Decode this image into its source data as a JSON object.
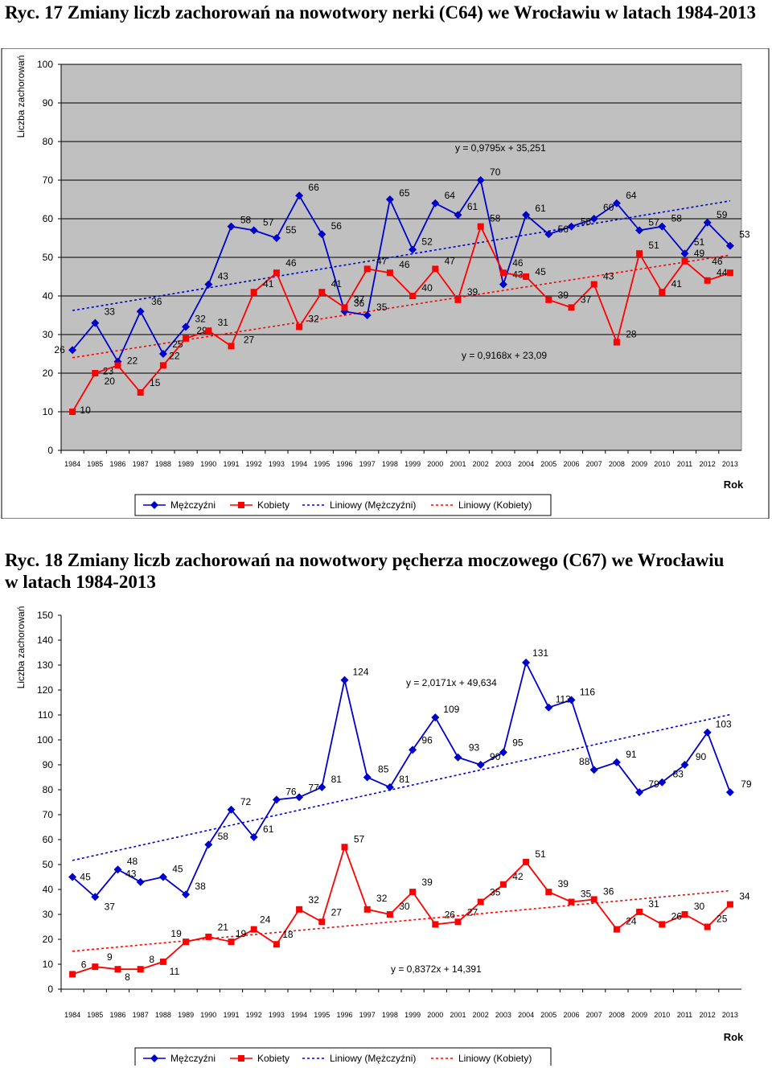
{
  "figures": [
    {
      "title": "Ryc. 17 Zmiany liczb zachorowań na nowotwory nerki (C64) we Wrocławiu w latach 1984-2013",
      "chart_data": {
        "type": "line",
        "x": [
          1984,
          1985,
          1986,
          1987,
          1988,
          1989,
          1990,
          1991,
          1992,
          1993,
          1994,
          1995,
          1996,
          1997,
          1998,
          1999,
          2000,
          2001,
          2002,
          2003,
          2004,
          2005,
          2006,
          2007,
          2008,
          2009,
          2010,
          2011,
          2012,
          2013
        ],
        "ylim": [
          0,
          100
        ],
        "yticks": [
          0,
          10,
          20,
          30,
          40,
          50,
          60,
          70,
          80,
          90,
          100
        ],
        "ylabel": "Liczba zachorowań",
        "xlabel": "Rok",
        "grid": "horizontal",
        "legend_position": "bottom",
        "series": [
          {
            "name": "Mężczyźni",
            "color": "#0000cc",
            "marker": "diamond",
            "values": [
              26,
              33,
              23,
              36,
              25,
              32,
              43,
              58,
              57,
              55,
              66,
              56,
              36,
              35,
              65,
              52,
              64,
              61,
              70,
              43,
              61,
              56,
              58,
              60,
              64,
              57,
              58,
              51,
              59,
              53
            ]
          },
          {
            "name": "Kobiety",
            "color": "#ff0000",
            "marker": "square",
            "values": [
              10,
              20,
              22,
              15,
              22,
              29,
              31,
              27,
              41,
              46,
              32,
              41,
              37,
              47,
              46,
              40,
              47,
              39,
              58,
              46,
              45,
              39,
              37,
              43,
              28,
              51,
              41,
              49,
              44,
              46
            ]
          }
        ],
        "trendlines": [
          {
            "name": "Liniowy (Mężczyźni)",
            "color": "#0000cc",
            "slope": 0.9795,
            "intercept": 35.251,
            "equation": "y = 0,9795x + 35,251"
          },
          {
            "name": "Liniowy (Kobiety)",
            "color": "#ff0000",
            "slope": 0.9168,
            "intercept": 23.09,
            "equation": "y = 0,9168x + 23,09"
          }
        ]
      }
    },
    {
      "title": "Ryc. 18 Zmiany liczb zachorowań na nowotwory pęcherza moczowego (C67) we Wrocławiu w latach 1984-2013",
      "chart_data": {
        "type": "line",
        "x": [
          1984,
          1985,
          1986,
          1987,
          1988,
          1989,
          1990,
          1991,
          1992,
          1993,
          1994,
          1995,
          1996,
          1997,
          1998,
          1999,
          2000,
          2001,
          2002,
          2003,
          2004,
          2005,
          2006,
          2007,
          2008,
          2009,
          2010,
          2011,
          2012,
          2013
        ],
        "ylim": [
          0,
          150
        ],
        "yticks": [
          0,
          10,
          20,
          30,
          40,
          50,
          60,
          70,
          80,
          90,
          100,
          110,
          120,
          130,
          140,
          150
        ],
        "ylabel": "Liczba zachorowań",
        "xlabel": "Rok",
        "grid": "none",
        "legend_position": "bottom",
        "series": [
          {
            "name": "Mężczyźni",
            "color": "#0000cc",
            "marker": "diamond",
            "values": [
              45,
              37,
              48,
              43,
              45,
              38,
              58,
              72,
              61,
              76,
              77,
              81,
              124,
              85,
              81,
              96,
              109,
              93,
              90,
              95,
              131,
              113,
              116,
              88,
              91,
              79,
              83,
              90,
              103,
              79
            ]
          },
          {
            "name": "Kobiety",
            "color": "#ff0000",
            "marker": "square",
            "values": [
              6,
              9,
              8,
              8,
              11,
              19,
              21,
              19,
              24,
              18,
              32,
              27,
              57,
              32,
              30,
              39,
              26,
              27,
              35,
              42,
              51,
              39,
              35,
              36,
              24,
              31,
              26,
              30,
              25,
              34
            ]
          }
        ],
        "trendlines": [
          {
            "name": "Liniowy (Mężczyźni)",
            "color": "#0000cc",
            "slope": 2.0171,
            "intercept": 49.634,
            "equation": "y = 2,0171x + 49,634"
          },
          {
            "name": "Liniowy (Kobiety)",
            "color": "#ff0000",
            "slope": 0.8372,
            "intercept": 14.391,
            "equation": "y = 0,8372x + 14,391"
          }
        ]
      }
    }
  ]
}
